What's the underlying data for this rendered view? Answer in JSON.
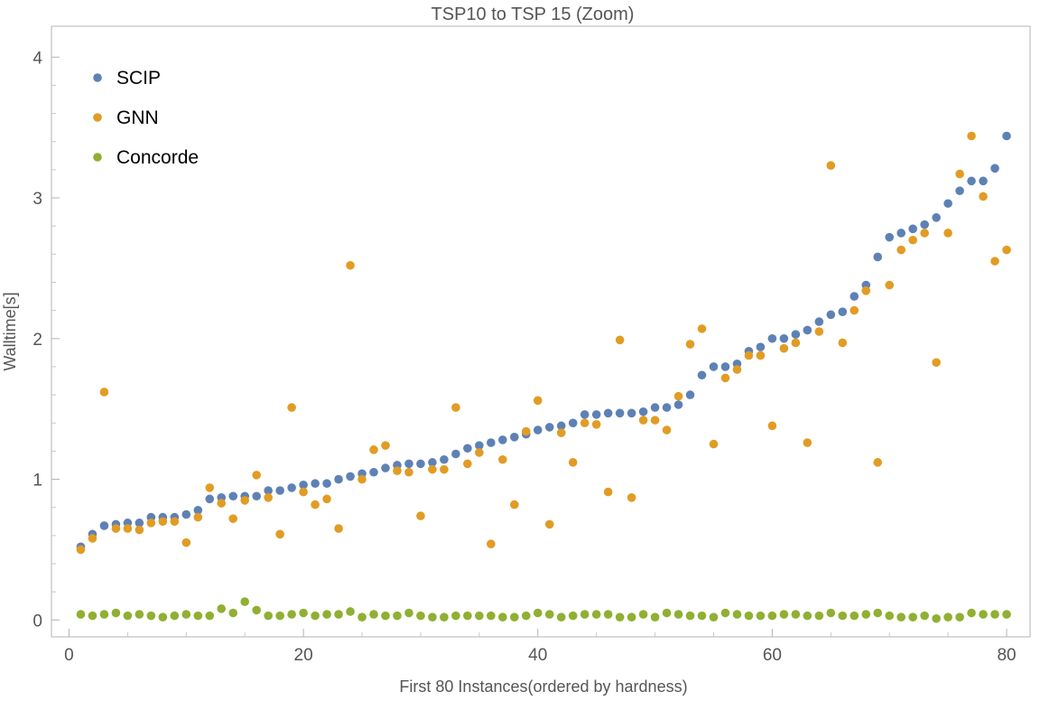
{
  "chart_data": {
    "type": "scatter",
    "title": "TSP10 to TSP 15 (Zoom)",
    "xlabel": "First 80 Instances(ordered by hardness)",
    "ylabel": "Walltime[s]",
    "xlim": [
      -1.5,
      82
    ],
    "ylim": [
      -0.12,
      4.22
    ],
    "xticks": [
      0,
      20,
      40,
      60,
      80
    ],
    "yticks": [
      0,
      1,
      2,
      3,
      4
    ],
    "grid": false,
    "legend_position": "top-left",
    "x": [
      1,
      2,
      3,
      4,
      5,
      6,
      7,
      8,
      9,
      10,
      11,
      12,
      13,
      14,
      15,
      16,
      17,
      18,
      19,
      20,
      21,
      22,
      23,
      24,
      25,
      26,
      27,
      28,
      29,
      30,
      31,
      32,
      33,
      34,
      35,
      36,
      37,
      38,
      39,
      40,
      41,
      42,
      43,
      44,
      45,
      46,
      47,
      48,
      49,
      50,
      51,
      52,
      53,
      54,
      55,
      56,
      57,
      58,
      59,
      60,
      61,
      62,
      63,
      64,
      65,
      66,
      67,
      68,
      69,
      70,
      71,
      72,
      73,
      74,
      75,
      76,
      77,
      78,
      79,
      80
    ],
    "series": [
      {
        "name": "SCIP",
        "color": "#5e81b5",
        "values": [
          0.52,
          0.61,
          0.67,
          0.68,
          0.69,
          0.69,
          0.73,
          0.73,
          0.73,
          0.75,
          0.78,
          0.86,
          0.87,
          0.88,
          0.88,
          0.88,
          0.92,
          0.92,
          0.94,
          0.96,
          0.97,
          0.97,
          1.0,
          1.02,
          1.04,
          1.05,
          1.08,
          1.1,
          1.11,
          1.11,
          1.12,
          1.14,
          1.18,
          1.22,
          1.24,
          1.26,
          1.28,
          1.3,
          1.32,
          1.35,
          1.37,
          1.38,
          1.4,
          1.46,
          1.46,
          1.47,
          1.47,
          1.47,
          1.48,
          1.51,
          1.51,
          1.53,
          1.6,
          1.74,
          1.8,
          1.8,
          1.82,
          1.91,
          1.94,
          2.0,
          2.0,
          2.03,
          2.06,
          2.12,
          2.17,
          2.19,
          2.3,
          2.38,
          2.58,
          2.72,
          2.75,
          2.78,
          2.81,
          2.86,
          2.96,
          3.05,
          3.12,
          3.12,
          3.21,
          3.44
        ]
      },
      {
        "name": "GNN",
        "color": "#e19c24",
        "values": [
          0.5,
          0.58,
          1.62,
          0.65,
          0.65,
          0.64,
          0.69,
          0.7,
          0.7,
          0.55,
          0.73,
          0.94,
          0.83,
          0.72,
          0.85,
          1.03,
          0.87,
          0.61,
          1.51,
          0.91,
          0.82,
          0.86,
          0.65,
          2.52,
          1.0,
          1.21,
          1.24,
          1.06,
          1.05,
          0.74,
          1.07,
          1.07,
          1.51,
          1.11,
          1.19,
          0.54,
          1.14,
          0.82,
          1.34,
          1.56,
          0.68,
          1.33,
          1.12,
          1.4,
          1.39,
          0.91,
          1.99,
          0.87,
          1.42,
          1.42,
          1.35,
          1.59,
          1.96,
          2.07,
          1.25,
          1.72,
          1.78,
          1.88,
          1.88,
          1.38,
          1.93,
          1.97,
          1.26,
          2.05,
          3.23,
          1.97,
          2.2,
          2.34,
          1.12,
          2.38,
          2.63,
          2.7,
          2.75,
          1.83,
          2.75,
          3.17,
          3.44,
          3.01,
          2.55,
          2.63
        ]
      },
      {
        "name": "Concorde",
        "color": "#8fb032",
        "values": [
          0.04,
          0.03,
          0.04,
          0.05,
          0.03,
          0.04,
          0.03,
          0.02,
          0.03,
          0.04,
          0.03,
          0.03,
          0.08,
          0.05,
          0.13,
          0.07,
          0.03,
          0.03,
          0.04,
          0.05,
          0.03,
          0.04,
          0.04,
          0.06,
          0.02,
          0.04,
          0.03,
          0.03,
          0.05,
          0.03,
          0.02,
          0.02,
          0.03,
          0.03,
          0.03,
          0.03,
          0.02,
          0.02,
          0.03,
          0.05,
          0.04,
          0.02,
          0.03,
          0.04,
          0.04,
          0.04,
          0.02,
          0.02,
          0.04,
          0.02,
          0.05,
          0.04,
          0.03,
          0.03,
          0.02,
          0.05,
          0.04,
          0.03,
          0.03,
          0.03,
          0.04,
          0.04,
          0.03,
          0.03,
          0.05,
          0.03,
          0.03,
          0.04,
          0.05,
          0.03,
          0.02,
          0.02,
          0.03,
          0.01,
          0.02,
          0.02,
          0.05,
          0.04,
          0.04,
          0.04
        ]
      }
    ]
  }
}
